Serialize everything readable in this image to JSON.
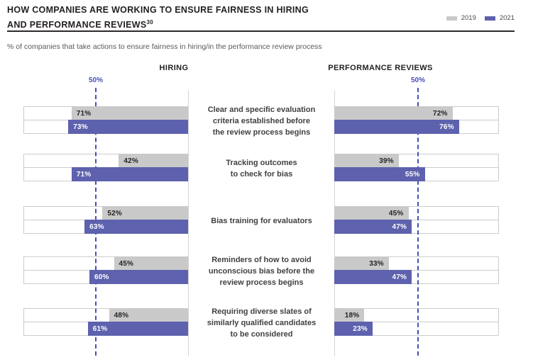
{
  "title": {
    "line1": "HOW COMPANIES ARE WORKING TO ENSURE FAIRNESS IN HIRING",
    "line2": "AND PERFORMANCE REVIEWS",
    "footnote_ref": "30"
  },
  "subtitle": "% of companies that take actions to ensure fairness in hiring/in the performance review process",
  "legend": {
    "items": [
      {
        "label": "2019",
        "color": "#c9c9c9"
      },
      {
        "label": "2021",
        "color": "#5d61ae"
      }
    ]
  },
  "colors": {
    "bar_2019": "#c9c9c9",
    "bar_2021": "#5d61ae",
    "reference_line": "#474fb5",
    "bar_label_dark": "#231f20",
    "bar_label_light": "#ffffff"
  },
  "chart_data": {
    "type": "bar",
    "orientation": "horizontal",
    "layout": "mirrored-panels",
    "xlim": [
      0,
      100
    ],
    "reference_line_pct": 50,
    "reference_line_label": "50%",
    "grid": false,
    "series_names": [
      "2019",
      "2021"
    ],
    "categories": [
      {
        "lines": [
          "Clear and specific evaluation",
          "criteria established before",
          "the review process begins"
        ]
      },
      {
        "lines": [
          "Tracking outcomes",
          "to check for bias"
        ]
      },
      {
        "lines": [
          "Bias training for evaluators"
        ]
      },
      {
        "lines": [
          "Reminders of how to avoid",
          "unconscious bias before the",
          "review process begins"
        ]
      },
      {
        "lines": [
          "Requiring diverse slates of",
          "similarly qualified candidates",
          "to be considered"
        ]
      }
    ],
    "panels": [
      {
        "header": "HIRING",
        "bar_direction": "right-to-left",
        "series": [
          {
            "name": "2019",
            "values": [
              71,
              42,
              52,
              45,
              48
            ]
          },
          {
            "name": "2021",
            "values": [
              73,
              71,
              63,
              60,
              61
            ]
          }
        ]
      },
      {
        "header": "PERFORMANCE REVIEWS",
        "bar_direction": "left-to-right",
        "series": [
          {
            "name": "2019",
            "values": [
              72,
              39,
              45,
              33,
              18
            ]
          },
          {
            "name": "2021",
            "values": [
              76,
              55,
              47,
              47,
              23
            ]
          }
        ]
      }
    ]
  }
}
